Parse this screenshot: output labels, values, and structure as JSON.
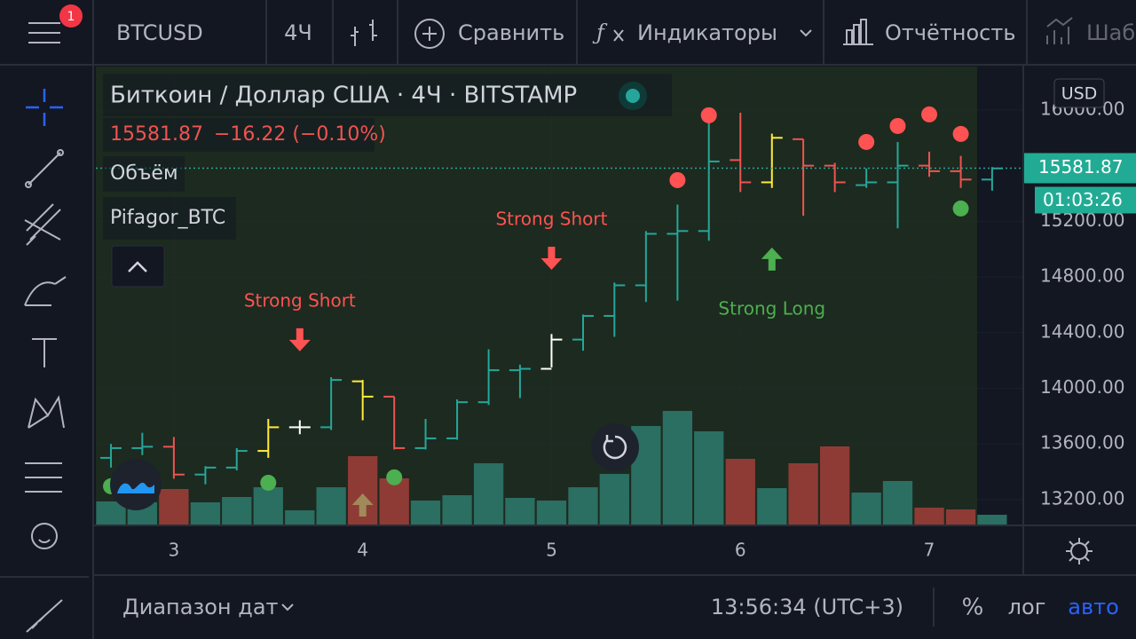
{
  "toolbar": {
    "badge": "1",
    "symbol": "BTCUSD",
    "interval": "4Ч",
    "compare": "Сравнить",
    "indicators": "Индикаторы",
    "reports": "Отчётность",
    "templates": "Шаб"
  },
  "legend": {
    "title": "Биткоин / Доллар США · 4Ч · BITSTAMP",
    "change": "−16.22 (−0.10%)",
    "volume": "Объём",
    "indicator": "Pifagor_BTC"
  },
  "chart_data": {
    "type": "ohlc",
    "xlim": [
      2.587,
      7.498
    ],
    "xticks": [
      3,
      4,
      5,
      6,
      7
    ],
    "ylim": [
      13021,
      16312
    ],
    "yticks": [
      {
        "value": 13200,
        "label": "13200.00"
      },
      {
        "value": 13600,
        "label": "13600.00"
      },
      {
        "value": 14000,
        "label": "14000.00"
      },
      {
        "value": 14400,
        "label": "14400.00"
      },
      {
        "value": 14800,
        "label": "14800.00"
      },
      {
        "value": 15200,
        "label": "15200.00"
      },
      {
        "value": 16000,
        "label": "16000.00"
      }
    ],
    "currency": "USD",
    "last_price": 15581.87,
    "countdown": "01:03:26",
    "bars": [
      {
        "x": 2.667,
        "open": 13500,
        "high": 13600,
        "low": 13430,
        "close": 13570,
        "volume": 26,
        "color": "#26a69a"
      },
      {
        "x": 2.833,
        "open": 13570,
        "high": 13680,
        "low": 13520,
        "close": 13580,
        "volume": 25,
        "color": "#26a69a"
      },
      {
        "x": 3.0,
        "open": 13580,
        "high": 13650,
        "low": 13350,
        "close": 13380,
        "volume": 40,
        "color": "#ef5350"
      },
      {
        "x": 3.167,
        "open": 13380,
        "high": 13440,
        "low": 13310,
        "close": 13430,
        "volume": 25,
        "color": "#26a69a"
      },
      {
        "x": 3.333,
        "open": 13430,
        "high": 13570,
        "low": 13410,
        "close": 13550,
        "volume": 31,
        "color": "#26a69a"
      },
      {
        "x": 3.5,
        "open": 13550,
        "high": 13780,
        "low": 13500,
        "close": 13720,
        "volume": 42,
        "color": "#ffeb3b"
      },
      {
        "x": 3.667,
        "open": 13720,
        "high": 13770,
        "low": 13670,
        "close": 13720,
        "volume": 16,
        "color": "#ffffff"
      },
      {
        "x": 3.833,
        "open": 13720,
        "high": 14080,
        "low": 13700,
        "close": 14060,
        "volume": 42,
        "color": "#26a69a"
      },
      {
        "x": 4.0,
        "open": 14050,
        "high": 14060,
        "low": 13770,
        "close": 13940,
        "volume": 77,
        "color": "#ffeb3b"
      },
      {
        "x": 4.167,
        "open": 13940,
        "high": 13940,
        "low": 13560,
        "close": 13570,
        "volume": 52,
        "color": "#ef5350"
      },
      {
        "x": 4.333,
        "open": 13570,
        "high": 13780,
        "low": 13560,
        "close": 13640,
        "volume": 27,
        "color": "#26a69a"
      },
      {
        "x": 4.5,
        "open": 13640,
        "high": 13920,
        "low": 13630,
        "close": 13900,
        "volume": 33,
        "color": "#26a69a"
      },
      {
        "x": 4.667,
        "open": 13900,
        "high": 14280,
        "low": 13880,
        "close": 14130,
        "volume": 69,
        "color": "#26a69a"
      },
      {
        "x": 4.833,
        "open": 14130,
        "high": 14170,
        "low": 13930,
        "close": 14140,
        "volume": 30,
        "color": "#26a69a"
      },
      {
        "x": 5.0,
        "open": 14140,
        "high": 14390,
        "low": 14150,
        "close": 14350,
        "volume": 27,
        "color": "#ffffff"
      },
      {
        "x": 5.167,
        "open": 14350,
        "high": 14530,
        "low": 14270,
        "close": 14520,
        "volume": 42,
        "color": "#26a69a"
      },
      {
        "x": 5.333,
        "open": 14520,
        "high": 14760,
        "low": 14370,
        "close": 14740,
        "volume": 57,
        "color": "#26a69a"
      },
      {
        "x": 5.5,
        "open": 14740,
        "high": 15130,
        "low": 14620,
        "close": 15110,
        "volume": 111,
        "color": "#26a69a"
      },
      {
        "x": 5.667,
        "open": 15110,
        "high": 15320,
        "low": 14630,
        "close": 15130,
        "volume": 128,
        "color": "#26a69a"
      },
      {
        "x": 5.833,
        "open": 15130,
        "high": 15930,
        "low": 15060,
        "close": 15630,
        "volume": 105,
        "color": "#26a69a"
      },
      {
        "x": 6.0,
        "open": 15640,
        "high": 15980,
        "low": 15410,
        "close": 15480,
        "volume": 74,
        "color": "#ef5350"
      },
      {
        "x": 6.167,
        "open": 15480,
        "high": 15830,
        "low": 15440,
        "close": 15800,
        "volume": 41,
        "color": "#ffeb3b"
      },
      {
        "x": 6.333,
        "open": 15790,
        "high": 15790,
        "low": 15240,
        "close": 15600,
        "volume": 69,
        "color": "#ef5350"
      },
      {
        "x": 6.5,
        "open": 15600,
        "high": 15620,
        "low": 15410,
        "close": 15480,
        "volume": 88,
        "color": "#ef5350"
      },
      {
        "x": 6.667,
        "open": 15460,
        "high": 15580,
        "low": 15440,
        "close": 15480,
        "volume": 36,
        "color": "#26a69a"
      },
      {
        "x": 6.833,
        "open": 15480,
        "high": 15770,
        "low": 15150,
        "close": 15600,
        "volume": 49,
        "color": "#26a69a"
      },
      {
        "x": 7.0,
        "open": 15600,
        "high": 15700,
        "low": 15520,
        "close": 15560,
        "volume": 19,
        "color": "#ef5350"
      },
      {
        "x": 7.167,
        "open": 15560,
        "high": 15670,
        "low": 15440,
        "close": 15500,
        "volume": 17,
        "color": "#ef5350"
      },
      {
        "x": 7.333,
        "open": 15500,
        "high": 15590,
        "low": 15420,
        "close": 15580,
        "volume": 11,
        "color": "#26a69a"
      }
    ],
    "signals": [
      {
        "x": 5.667,
        "price": 15496,
        "color": "#ff5252"
      },
      {
        "x": 5.833,
        "price": 15962,
        "color": "#ff5252"
      },
      {
        "x": 6.667,
        "price": 15770,
        "color": "#ff5252"
      },
      {
        "x": 6.833,
        "price": 15885,
        "color": "#ff5252"
      },
      {
        "x": 7.0,
        "price": 15968,
        "color": "#ff5252"
      },
      {
        "x": 7.167,
        "price": 15828,
        "color": "#ff5252"
      },
      {
        "x": 2.667,
        "price": 13296,
        "color": "#4caf50"
      },
      {
        "x": 3.5,
        "price": 13321,
        "color": "#4caf50"
      },
      {
        "x": 4.167,
        "price": 13360,
        "color": "#4caf50"
      },
      {
        "x": 7.167,
        "price": 15292,
        "color": "#4caf50"
      }
    ],
    "arrows": [
      {
        "x": 3.667,
        "price": 14272,
        "direction": "down",
        "color": "#ff5252"
      },
      {
        "x": 5.0,
        "price": 14858,
        "direction": "down",
        "color": "#ff5252"
      },
      {
        "x": 6.167,
        "price": 15005,
        "direction": "up",
        "color": "#4caf50"
      },
      {
        "x": 4.0,
        "price": 13238,
        "direction": "up",
        "color": "#a08a5a"
      }
    ],
    "annotations": [
      {
        "text": "Strong Short",
        "x": 3.667,
        "price": 14622,
        "color": "#ff5252"
      },
      {
        "text": "Strong Short",
        "x": 5.0,
        "price": 15209,
        "color": "#ff5252"
      },
      {
        "text": "Strong Long",
        "x": 6.167,
        "price": 14565,
        "color": "#4caf50"
      }
    ]
  },
  "bottom": {
    "range": "Диапазон дат",
    "time": "13:56:34 (UTC+3)",
    "percent": "%",
    "log": "лог",
    "auto": "авто"
  }
}
